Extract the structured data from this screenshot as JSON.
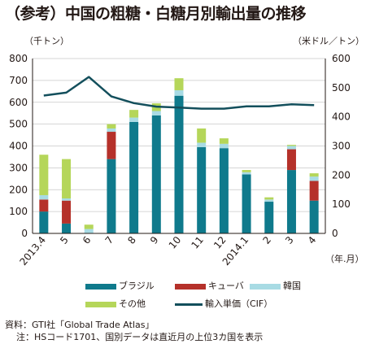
{
  "title": "（参考）中国の粗糖・白糖月別輸出量の推移",
  "unit_left": "（千トン）",
  "unit_right": "（米ドル／トン）",
  "x_unit": "（年.月）",
  "legend": {
    "brazil": "ブラジル",
    "cuba": "キューバ",
    "korea": "韓国",
    "other": "その他",
    "price": "輸入単価（CIF）"
  },
  "notes": {
    "source": "資料：GTI社「Global Trade Atlas」",
    "note": "注：HSコード1701、国別データは直近月の上位3カ国を表示"
  },
  "colors": {
    "brazil": "#0f7a8c",
    "cuba": "#b5312a",
    "korea": "#a8dbe4",
    "other": "#b5d65a",
    "price": "#134f5c"
  },
  "chart_data": {
    "type": "bar",
    "stacked": true,
    "categories": [
      "2013.4",
      "5",
      "6",
      "7",
      "8",
      "9",
      "10",
      "11",
      "12",
      "2014.1",
      "2",
      "3",
      "4"
    ],
    "series": [
      {
        "name": "ブラジル",
        "values": [
          100,
          45,
          0,
          340,
          510,
          540,
          630,
          395,
          390,
          270,
          145,
          290,
          150
        ]
      },
      {
        "name": "キューバ",
        "values": [
          55,
          105,
          0,
          125,
          0,
          0,
          0,
          0,
          0,
          0,
          0,
          95,
          90
        ]
      },
      {
        "name": "韓国",
        "values": [
          20,
          10,
          20,
          15,
          20,
          20,
          25,
          20,
          20,
          10,
          10,
          15,
          20
        ]
      },
      {
        "name": "その他",
        "values": [
          185,
          180,
          20,
          20,
          35,
          35,
          55,
          65,
          25,
          10,
          10,
          5,
          15
        ]
      }
    ],
    "line_series": {
      "name": "輸入単価（CIF）",
      "axis": "right",
      "values": [
        473,
        483,
        537,
        470,
        447,
        435,
        432,
        428,
        428,
        436,
        436,
        443,
        440
      ]
    },
    "yticks": [
      "0",
      "100",
      "200",
      "300",
      "400",
      "500",
      "600",
      "700",
      "800"
    ],
    "y2ticks": [
      "0",
      "100",
      "200",
      "300",
      "400",
      "500",
      "600"
    ],
    "ylim": [
      0,
      800
    ],
    "y2lim": [
      0,
      600
    ],
    "grid": true
  }
}
